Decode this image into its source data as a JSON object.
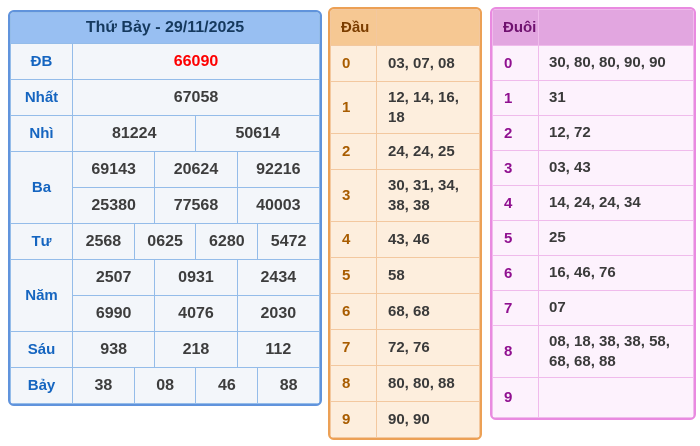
{
  "colors": {
    "special_prize_text": "#fe0000",
    "left_accent": "#98bff2",
    "middle_accent": "#f6c893",
    "right_accent": "#e2a6e0"
  },
  "result_table": {
    "title": "Thứ Bảy - 29/11/2025",
    "rows": [
      {
        "label": "ĐB",
        "cells": [
          "66090"
        ]
      },
      {
        "label": "Nhất",
        "cells": [
          "67058"
        ]
      },
      {
        "label": "Nhì",
        "cells": [
          "81224",
          "50614"
        ]
      },
      {
        "label": "Ba",
        "cells": [
          "69143",
          "20624",
          "92216",
          "25380",
          "77568",
          "40003"
        ]
      },
      {
        "label": "Tư",
        "cells": [
          "2568",
          "0625",
          "6280",
          "5472"
        ]
      },
      {
        "label": "Năm",
        "cells": [
          "2507",
          "0931",
          "2434",
          "6990",
          "4076",
          "2030"
        ]
      },
      {
        "label": "Sáu",
        "cells": [
          "938",
          "218",
          "112"
        ]
      },
      {
        "label": "Bảy",
        "cells": [
          "38",
          "08",
          "46",
          "88"
        ]
      }
    ]
  },
  "dau_table": {
    "header": "Đầu",
    "rows": [
      {
        "digit": "0",
        "values": "03, 07, 08"
      },
      {
        "digit": "1",
        "values": "12, 14, 16, 18"
      },
      {
        "digit": "2",
        "values": "24, 24, 25"
      },
      {
        "digit": "3",
        "values": "30, 31, 34, 38, 38"
      },
      {
        "digit": "4",
        "values": "43, 46"
      },
      {
        "digit": "5",
        "values": "58"
      },
      {
        "digit": "6",
        "values": "68, 68"
      },
      {
        "digit": "7",
        "values": "72, 76"
      },
      {
        "digit": "8",
        "values": "80, 80, 88"
      },
      {
        "digit": "9",
        "values": "90, 90"
      }
    ]
  },
  "duoi_table": {
    "header": "Đuôi",
    "rows": [
      {
        "digit": "0",
        "values": "30, 80, 80, 90, 90"
      },
      {
        "digit": "1",
        "values": "31"
      },
      {
        "digit": "2",
        "values": "12, 72"
      },
      {
        "digit": "3",
        "values": "03, 43"
      },
      {
        "digit": "4",
        "values": "14, 24, 24, 34"
      },
      {
        "digit": "5",
        "values": "25"
      },
      {
        "digit": "6",
        "values": "16, 46, 76"
      },
      {
        "digit": "7",
        "values": "07"
      },
      {
        "digit": "8",
        "values": "08, 18, 38, 38, 58, 68, 68, 88"
      },
      {
        "digit": "9",
        "values": ""
      }
    ]
  }
}
